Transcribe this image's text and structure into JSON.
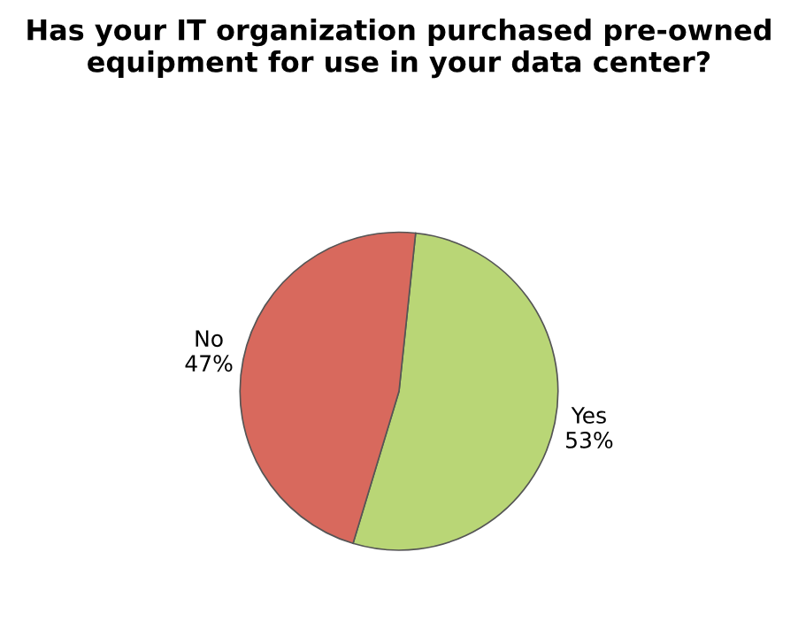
{
  "chart_data": {
    "type": "pie",
    "title": "Has your IT organization purchased pre-owned equipment for use in your data center?",
    "categories": [
      "Yes",
      "No"
    ],
    "values": [
      53,
      47
    ],
    "value_labels": [
      "53%",
      "47%"
    ],
    "colors": [
      "#b9d676",
      "#d8695d"
    ]
  }
}
